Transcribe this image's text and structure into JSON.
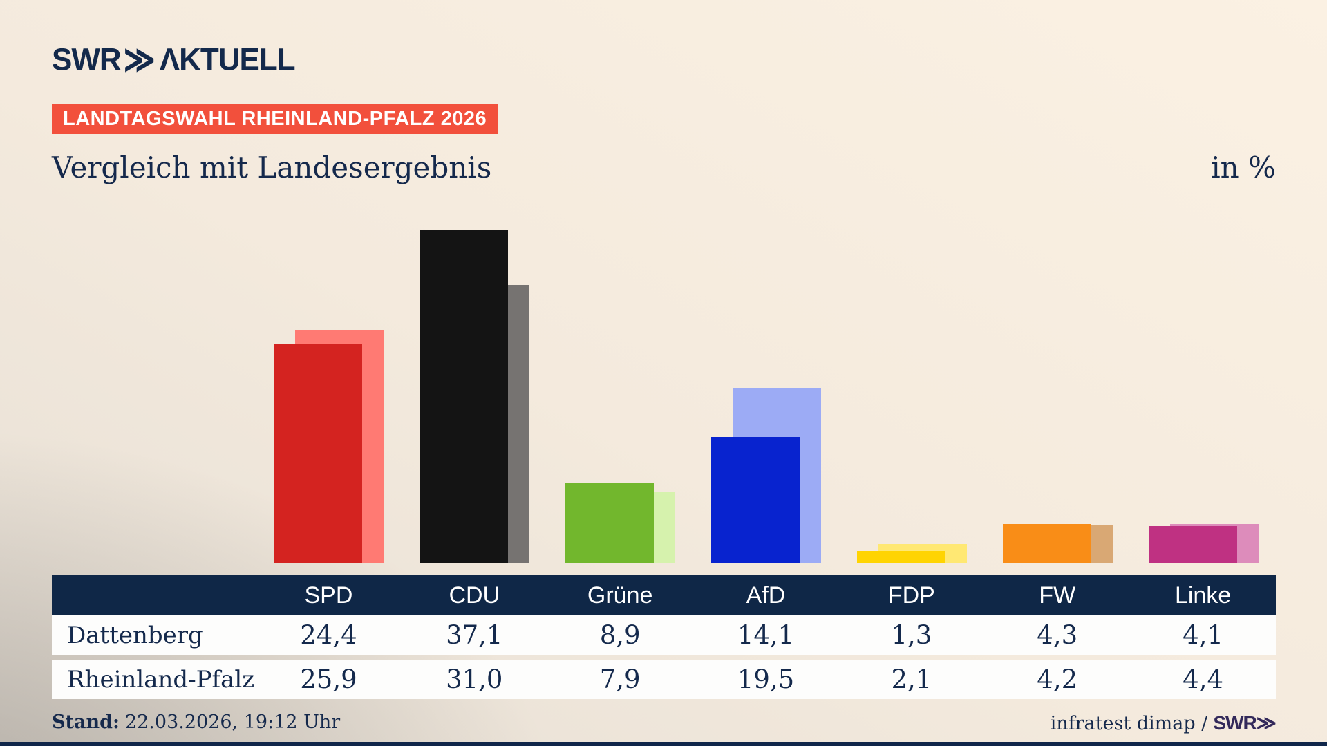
{
  "logo": {
    "swr": "SWR",
    "chevrons": "≫",
    "aktuell": "ΛKTUELL"
  },
  "badge": {
    "text": "LANDTAGSWAHL RHEINLAND-PFALZ 2026",
    "bg": "#f2503c"
  },
  "title": "Vergleich mit Landesergebnis",
  "unit_label": "in %",
  "chart_data": {
    "type": "bar",
    "categories": [
      "SPD",
      "CDU",
      "Grüne",
      "AfD",
      "FDP",
      "FW",
      "Linke"
    ],
    "series": [
      {
        "name": "Dattenberg",
        "values": [
          24.4,
          37.1,
          8.9,
          14.1,
          1.3,
          4.3,
          4.1
        ]
      },
      {
        "name": "Rheinland-Pfalz",
        "values": [
          25.9,
          31.0,
          7.9,
          19.5,
          2.1,
          4.2,
          4.4
        ]
      }
    ],
    "colors": {
      "front": [
        "#d42320",
        "#141414",
        "#72b72d",
        "#0823cf",
        "#ffd402",
        "#f98d17",
        "#bf3182"
      ],
      "back": [
        "#ff7a73",
        "#767371",
        "#d6f2ad",
        "#9cabf5",
        "#ffe873",
        "#d9a874",
        "#dd8cbb"
      ]
    },
    "title": "Vergleich mit Landesergebnis",
    "xlabel": "",
    "ylabel": "in %",
    "ylim": [
      0,
      40
    ],
    "grid": false,
    "legend_position": "table-below",
    "note": "front bar = Dattenberg, offset lighter back bar = Rheinland-Pfalz"
  },
  "table": {
    "header": [
      "",
      "SPD",
      "CDU",
      "Grüne",
      "AfD",
      "FDP",
      "FW",
      "Linke"
    ],
    "rows": [
      {
        "label": "Dattenberg",
        "values": [
          "24,4",
          "37,1",
          "8,9",
          "14,1",
          "1,3",
          "4,3",
          "4,1"
        ]
      },
      {
        "label": "Rheinland-Pfalz",
        "values": [
          "25,9",
          "31,0",
          "7,9",
          "19,5",
          "2,1",
          "4,2",
          "4,4"
        ]
      }
    ]
  },
  "footer": {
    "stand_label": "Stand:",
    "stand_value": "22.03.2026, 19:12 Uhr",
    "source": "infratest dimap /",
    "source_logo": "SWR≫"
  }
}
